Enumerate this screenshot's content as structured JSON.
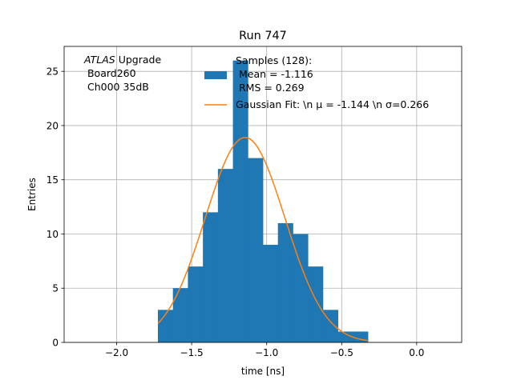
{
  "chart_data": {
    "type": "bar",
    "title": "Run 747",
    "xlabel": "time [ns]",
    "ylabel": "Entries",
    "xlim": [
      -2.35,
      0.3
    ],
    "ylim": [
      0,
      27.3
    ],
    "grid": true,
    "xticks": [
      {
        "value": -2.0,
        "label": "−2.0"
      },
      {
        "value": -1.5,
        "label": "−1.5"
      },
      {
        "value": -1.0,
        "label": "−1.0"
      },
      {
        "value": -0.5,
        "label": "−0.5"
      },
      {
        "value": 0.0,
        "label": "0.0"
      }
    ],
    "yticks": [
      {
        "value": 0,
        "label": "0"
      },
      {
        "value": 5,
        "label": "5"
      },
      {
        "value": 10,
        "label": "10"
      },
      {
        "value": 15,
        "label": "15"
      },
      {
        "value": 20,
        "label": "20"
      },
      {
        "value": 25,
        "label": "25"
      }
    ],
    "annotation": {
      "atlas": "ATLAS",
      "upgrade": " Upgrade",
      "board": " Board260",
      "channel": " Ch000 35dB"
    },
    "histogram": {
      "bin_edges": [
        -1.725,
        -1.625,
        -1.525,
        -1.425,
        -1.325,
        -1.225,
        -1.125,
        -1.025,
        -0.925,
        -0.825,
        -0.725,
        -0.625,
        -0.525,
        -0.425,
        -0.325
      ],
      "counts": [
        3,
        5,
        7,
        12,
        16,
        26,
        17,
        9,
        11,
        10,
        7,
        3,
        1,
        1
      ],
      "color": "#1f77b4",
      "legend_lines": [
        "Samples (128):",
        " Mean = -1.116",
        " RMS = 0.269"
      ]
    },
    "fit": {
      "mu": -1.144,
      "sigma": 0.266,
      "amplitude": 18.9,
      "x_range": [
        -1.725,
        -0.325
      ],
      "color": "#ff7f0e",
      "legend_label": "Gaussian Fit: \\n μ = -1.144 \\n σ=0.266"
    }
  }
}
